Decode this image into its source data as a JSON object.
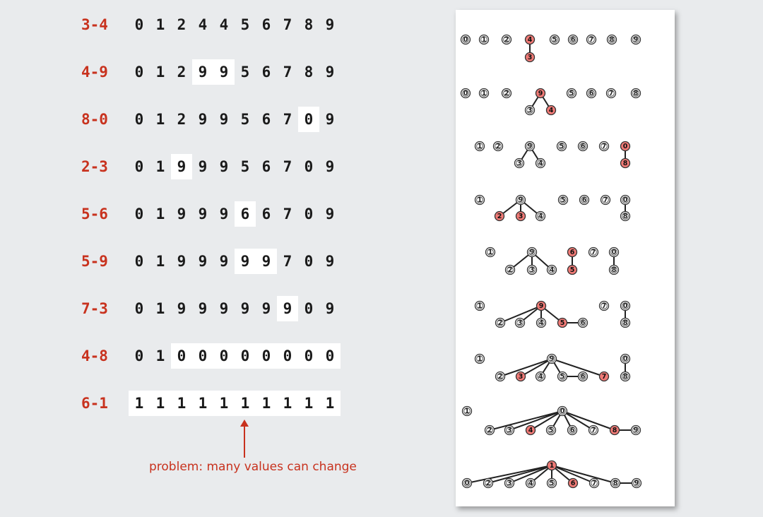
{
  "rows": [
    {
      "op": "3-4",
      "values": [
        "0",
        "1",
        "2",
        "4",
        "4",
        "5",
        "6",
        "7",
        "8",
        "9"
      ],
      "hl": []
    },
    {
      "op": "4-9",
      "values": [
        "0",
        "1",
        "2",
        "9",
        "9",
        "5",
        "6",
        "7",
        "8",
        "9"
      ],
      "hl": [
        3,
        4
      ]
    },
    {
      "op": "8-0",
      "values": [
        "0",
        "1",
        "2",
        "9",
        "9",
        "5",
        "6",
        "7",
        "0",
        "9"
      ],
      "hl": [
        8
      ]
    },
    {
      "op": "2-3",
      "values": [
        "0",
        "1",
        "9",
        "9",
        "9",
        "5",
        "6",
        "7",
        "0",
        "9"
      ],
      "hl": [
        2
      ]
    },
    {
      "op": "5-6",
      "values": [
        "0",
        "1",
        "9",
        "9",
        "9",
        "6",
        "6",
        "7",
        "0",
        "9"
      ],
      "hl": [
        5
      ]
    },
    {
      "op": "5-9",
      "values": [
        "0",
        "1",
        "9",
        "9",
        "9",
        "9",
        "9",
        "7",
        "0",
        "9"
      ],
      "hl": [
        5,
        6
      ]
    },
    {
      "op": "7-3",
      "values": [
        "0",
        "1",
        "9",
        "9",
        "9",
        "9",
        "9",
        "9",
        "0",
        "9"
      ],
      "hl": [
        7
      ]
    },
    {
      "op": "4-8",
      "values": [
        "0",
        "1",
        "0",
        "0",
        "0",
        "0",
        "0",
        "0",
        "0",
        "0"
      ],
      "hl": [
        2,
        3,
        4,
        5,
        6,
        7,
        8,
        9
      ]
    },
    {
      "op": "6-1",
      "values": [
        "1",
        "1",
        "1",
        "1",
        "1",
        "1",
        "1",
        "1",
        "1",
        "1"
      ],
      "hl": [
        0,
        1,
        2,
        3,
        4,
        5,
        6,
        7,
        8,
        9
      ]
    }
  ],
  "caption": "problem: many values can change",
  "colors": {
    "accent": "#c8321e",
    "node_highlight": "#f07a76",
    "background": "#e9ebed",
    "panel": "#ffffff"
  },
  "trees": [
    {
      "nodes": [
        [
          "0",
          0,
          "n"
        ],
        [
          "1",
          1,
          "n"
        ],
        [
          "2",
          2,
          "n"
        ],
        [
          "4",
          3,
          "r"
        ],
        [
          "3",
          4,
          "r"
        ],
        [
          "5",
          5,
          "n"
        ],
        [
          "6",
          6,
          "n"
        ],
        [
          "7",
          7,
          "n"
        ],
        [
          "8",
          8,
          "n"
        ],
        [
          "9",
          9,
          "n"
        ]
      ],
      "edges": [
        [
          4,
          3
        ]
      ]
    },
    {
      "nodes": [
        [
          "0",
          0,
          "n"
        ],
        [
          "1",
          1,
          "n"
        ],
        [
          "2",
          2,
          "n"
        ],
        [
          "9",
          3,
          "r"
        ],
        [
          "3",
          4,
          "n"
        ],
        [
          "4",
          5,
          "r"
        ],
        [
          "5",
          6,
          "n"
        ],
        [
          "6",
          7,
          "n"
        ],
        [
          "7",
          8,
          "n"
        ],
        [
          "8",
          9,
          "n"
        ]
      ],
      "edges": [
        [
          4,
          3
        ],
        [
          5,
          3
        ]
      ]
    },
    {
      "nodes": [
        [
          "1",
          0,
          "n"
        ],
        [
          "2",
          1,
          "n"
        ],
        [
          "9",
          2,
          "n"
        ],
        [
          "3",
          3,
          "n"
        ],
        [
          "4",
          4,
          "n"
        ],
        [
          "5",
          5,
          "n"
        ],
        [
          "6",
          6,
          "n"
        ],
        [
          "7",
          7,
          "n"
        ],
        [
          "0",
          8,
          "r"
        ],
        [
          "8",
          9,
          "r"
        ]
      ],
      "edges": [
        [
          3,
          2
        ],
        [
          4,
          2
        ],
        [
          9,
          8
        ]
      ]
    },
    {
      "nodes": [
        [
          "1",
          0,
          "n"
        ],
        [
          "9",
          1,
          "n"
        ],
        [
          "2",
          2,
          "r"
        ],
        [
          "3",
          3,
          "r"
        ],
        [
          "4",
          4,
          "n"
        ],
        [
          "5",
          5,
          "n"
        ],
        [
          "6",
          6,
          "n"
        ],
        [
          "7",
          7,
          "n"
        ],
        [
          "0",
          8,
          "n"
        ],
        [
          "8",
          9,
          "n"
        ]
      ],
      "edges": [
        [
          2,
          1
        ],
        [
          3,
          1
        ],
        [
          4,
          1
        ],
        [
          9,
          8
        ]
      ]
    },
    {
      "nodes": [
        [
          "1",
          0,
          "n"
        ],
        [
          "9",
          1,
          "n"
        ],
        [
          "2",
          2,
          "n"
        ],
        [
          "3",
          3,
          "n"
        ],
        [
          "4",
          4,
          "n"
        ],
        [
          "6",
          5,
          "r"
        ],
        [
          "5",
          6,
          "r"
        ],
        [
          "7",
          7,
          "n"
        ],
        [
          "0",
          8,
          "n"
        ],
        [
          "8",
          9,
          "n"
        ]
      ],
      "edges": [
        [
          2,
          1
        ],
        [
          3,
          1
        ],
        [
          4,
          1
        ],
        [
          6,
          5
        ],
        [
          9,
          8
        ]
      ]
    },
    {
      "nodes": [
        [
          "1",
          0,
          "n"
        ],
        [
          "9",
          1,
          "r"
        ],
        [
          "2",
          2,
          "n"
        ],
        [
          "3",
          3,
          "n"
        ],
        [
          "4",
          4,
          "n"
        ],
        [
          "5",
          5,
          "r"
        ],
        [
          "6",
          6,
          "n"
        ],
        [
          "7",
          7,
          "n"
        ],
        [
          "0",
          8,
          "n"
        ],
        [
          "8",
          9,
          "n"
        ]
      ],
      "edges": [
        [
          2,
          1
        ],
        [
          3,
          1
        ],
        [
          4,
          1
        ],
        [
          5,
          1
        ],
        [
          6,
          5
        ],
        [
          9,
          8
        ]
      ]
    },
    {
      "nodes": [
        [
          "1",
          0,
          "n"
        ],
        [
          "9",
          1,
          "n"
        ],
        [
          "2",
          2,
          "n"
        ],
        [
          "3",
          3,
          "r"
        ],
        [
          "4",
          4,
          "n"
        ],
        [
          "5",
          5,
          "n"
        ],
        [
          "6",
          6,
          "n"
        ],
        [
          "7",
          7,
          "r"
        ],
        [
          "0",
          8,
          "n"
        ],
        [
          "8",
          9,
          "n"
        ]
      ],
      "edges": [
        [
          2,
          1
        ],
        [
          3,
          1
        ],
        [
          4,
          1
        ],
        [
          5,
          1
        ],
        [
          6,
          5
        ],
        [
          7,
          1
        ],
        [
          9,
          8
        ]
      ]
    },
    {
      "nodes": [
        [
          "1",
          0,
          "n"
        ],
        [
          "0",
          1,
          "n"
        ],
        [
          "2",
          2,
          "n"
        ],
        [
          "3",
          3,
          "n"
        ],
        [
          "4",
          4,
          "r"
        ],
        [
          "5",
          5,
          "n"
        ],
        [
          "6",
          6,
          "n"
        ],
        [
          "7",
          7,
          "n"
        ],
        [
          "8",
          8,
          "r"
        ],
        [
          "9",
          9,
          "n"
        ]
      ],
      "edges": [
        [
          2,
          1
        ],
        [
          3,
          1
        ],
        [
          4,
          1
        ],
        [
          5,
          1
        ],
        [
          6,
          1
        ],
        [
          7,
          1
        ],
        [
          8,
          1
        ],
        [
          9,
          8
        ]
      ]
    },
    {
      "nodes": [
        [
          "1",
          0,
          "r"
        ],
        [
          "0",
          1,
          "n"
        ],
        [
          "2",
          2,
          "n"
        ],
        [
          "3",
          3,
          "n"
        ],
        [
          "4",
          4,
          "n"
        ],
        [
          "5",
          5,
          "n"
        ],
        [
          "6",
          6,
          "r"
        ],
        [
          "7",
          7,
          "n"
        ],
        [
          "8",
          8,
          "n"
        ],
        [
          "9",
          9,
          "n"
        ]
      ],
      "edges": [
        [
          1,
          0
        ],
        [
          2,
          0
        ],
        [
          3,
          0
        ],
        [
          4,
          0
        ],
        [
          5,
          0
        ],
        [
          6,
          0
        ],
        [
          7,
          0
        ],
        [
          8,
          0
        ],
        [
          9,
          8
        ]
      ]
    }
  ]
}
